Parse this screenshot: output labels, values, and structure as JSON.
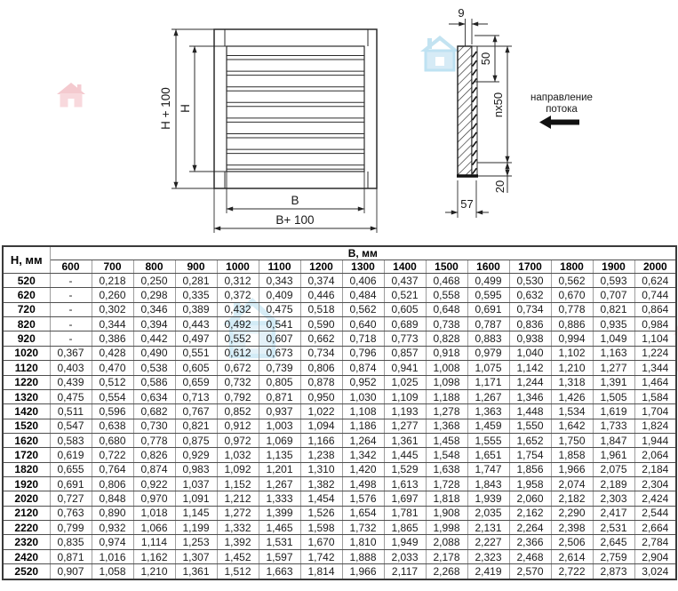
{
  "drawings": {
    "front_view": {
      "dim_height_outer": "H + 100",
      "dim_height_inner": "H",
      "dim_width_inner": "B",
      "dim_width_outer": "B+ 100"
    },
    "side_view": {
      "dim_blade_thickness": "9",
      "dim_blade_pitch": "50",
      "dim_blades_total": "nx50",
      "dim_bottom": "20",
      "dim_depth": "57",
      "flow_label_line1": "направление",
      "flow_label_line2": "потока"
    }
  },
  "colors": {
    "line": "#2b2b2b",
    "watermark_pink": "#f2b3bb",
    "watermark_blue": "#aedcf0"
  },
  "table": {
    "row_axis_label": "Н, мм",
    "col_axis_label": "В, мм",
    "col_headers": [
      "600",
      "700",
      "800",
      "900",
      "1000",
      "1100",
      "1200",
      "1300",
      "1400",
      "1500",
      "1600",
      "1700",
      "1800",
      "1900",
      "2000"
    ],
    "rows": [
      {
        "h": "520",
        "v": [
          "-",
          "0,218",
          "0,250",
          "0,281",
          "0,312",
          "0,343",
          "0,374",
          "0,406",
          "0,437",
          "0,468",
          "0,499",
          "0,530",
          "0,562",
          "0,593",
          "0,624"
        ]
      },
      {
        "h": "620",
        "v": [
          "-",
          "0,260",
          "0,298",
          "0,335",
          "0,372",
          "0,409",
          "0,446",
          "0,484",
          "0,521",
          "0,558",
          "0,595",
          "0,632",
          "0,670",
          "0,707",
          "0,744"
        ]
      },
      {
        "h": "720",
        "v": [
          "-",
          "0,302",
          "0,346",
          "0,389",
          "0,432",
          "0,475",
          "0,518",
          "0,562",
          "0,605",
          "0,648",
          "0,691",
          "0,734",
          "0,778",
          "0,821",
          "0,864"
        ]
      },
      {
        "h": "820",
        "v": [
          "-",
          "0,344",
          "0,394",
          "0,443",
          "0,492",
          "0,541",
          "0,590",
          "0,640",
          "0,689",
          "0,738",
          "0,787",
          "0,836",
          "0,886",
          "0,935",
          "0,984"
        ]
      },
      {
        "h": "920",
        "v": [
          "-",
          "0,386",
          "0,442",
          "0,497",
          "0,552",
          "0,607",
          "0,662",
          "0,718",
          "0,773",
          "0,828",
          "0,883",
          "0,938",
          "0,994",
          "1,049",
          "1,104"
        ]
      },
      {
        "h": "1020",
        "v": [
          "0,367",
          "0,428",
          "0,490",
          "0,551",
          "0,612",
          "0,673",
          "0,734",
          "0,796",
          "0,857",
          "0,918",
          "0,979",
          "1,040",
          "1,102",
          "1,163",
          "1,224"
        ]
      },
      {
        "h": "1120",
        "v": [
          "0,403",
          "0,470",
          "0,538",
          "0,605",
          "0,672",
          "0,739",
          "0,806",
          "0,874",
          "0,941",
          "1,008",
          "1,075",
          "1,142",
          "1,210",
          "1,277",
          "1,344"
        ]
      },
      {
        "h": "1220",
        "v": [
          "0,439",
          "0,512",
          "0,586",
          "0,659",
          "0,732",
          "0,805",
          "0,878",
          "0,952",
          "1,025",
          "1,098",
          "1,171",
          "1,244",
          "1,318",
          "1,391",
          "1,464"
        ]
      },
      {
        "h": "1320",
        "v": [
          "0,475",
          "0,554",
          "0,634",
          "0,713",
          "0,792",
          "0,871",
          "0,950",
          "1,030",
          "1,109",
          "1,188",
          "1,267",
          "1,346",
          "1,426",
          "1,505",
          "1,584"
        ]
      },
      {
        "h": "1420",
        "v": [
          "0,511",
          "0,596",
          "0,682",
          "0,767",
          "0,852",
          "0,937",
          "1,022",
          "1,108",
          "1,193",
          "1,278",
          "1,363",
          "1,448",
          "1,534",
          "1,619",
          "1,704"
        ]
      },
      {
        "h": "1520",
        "v": [
          "0,547",
          "0,638",
          "0,730",
          "0,821",
          "0,912",
          "1,003",
          "1,094",
          "1,186",
          "1,277",
          "1,368",
          "1,459",
          "1,550",
          "1,642",
          "1,733",
          "1,824"
        ]
      },
      {
        "h": "1620",
        "v": [
          "0,583",
          "0,680",
          "0,778",
          "0,875",
          "0,972",
          "1,069",
          "1,166",
          "1,264",
          "1,361",
          "1,458",
          "1,555",
          "1,652",
          "1,750",
          "1,847",
          "1,944"
        ]
      },
      {
        "h": "1720",
        "v": [
          "0,619",
          "0,722",
          "0,826",
          "0,929",
          "1,032",
          "1,135",
          "1,238",
          "1,342",
          "1,445",
          "1,548",
          "1,651",
          "1,754",
          "1,858",
          "1,961",
          "2,064"
        ]
      },
      {
        "h": "1820",
        "v": [
          "0,655",
          "0,764",
          "0,874",
          "0,983",
          "1,092",
          "1,201",
          "1,310",
          "1,420",
          "1,529",
          "1,638",
          "1,747",
          "1,856",
          "1,966",
          "2,075",
          "2,184"
        ]
      },
      {
        "h": "1920",
        "v": [
          "0,691",
          "0,806",
          "0,922",
          "1,037",
          "1,152",
          "1,267",
          "1,382",
          "1,498",
          "1,613",
          "1,728",
          "1,843",
          "1,958",
          "2,074",
          "2,189",
          "2,304"
        ]
      },
      {
        "h": "2020",
        "v": [
          "0,727",
          "0,848",
          "0,970",
          "1,091",
          "1,212",
          "1,333",
          "1,454",
          "1,576",
          "1,697",
          "1,818",
          "1,939",
          "2,060",
          "2,182",
          "2,303",
          "2,424"
        ]
      },
      {
        "h": "2120",
        "v": [
          "0,763",
          "0,890",
          "1,018",
          "1,145",
          "1,272",
          "1,399",
          "1,526",
          "1,654",
          "1,781",
          "1,908",
          "2,035",
          "2,162",
          "2,290",
          "2,417",
          "2,544"
        ]
      },
      {
        "h": "2220",
        "v": [
          "0,799",
          "0,932",
          "1,066",
          "1,199",
          "1,332",
          "1,465",
          "1,598",
          "1,732",
          "1,865",
          "1,998",
          "2,131",
          "2,264",
          "2,398",
          "2,531",
          "2,664"
        ]
      },
      {
        "h": "2320",
        "v": [
          "0,835",
          "0,974",
          "1,114",
          "1,253",
          "1,392",
          "1,531",
          "1,670",
          "1,810",
          "1,949",
          "2,088",
          "2,227",
          "2,366",
          "2,506",
          "2,645",
          "2,784"
        ]
      },
      {
        "h": "2420",
        "v": [
          "0,871",
          "1,016",
          "1,162",
          "1,307",
          "1,452",
          "1,597",
          "1,742",
          "1,888",
          "2,033",
          "2,178",
          "2,323",
          "2,468",
          "2,614",
          "2,759",
          "2,904"
        ]
      },
      {
        "h": "2520",
        "v": [
          "0,907",
          "1,058",
          "1,210",
          "1,361",
          "1,512",
          "1,663",
          "1,814",
          "1,966",
          "2,117",
          "2,268",
          "2,419",
          "2,570",
          "2,722",
          "2,873",
          "3,024"
        ]
      }
    ]
  }
}
